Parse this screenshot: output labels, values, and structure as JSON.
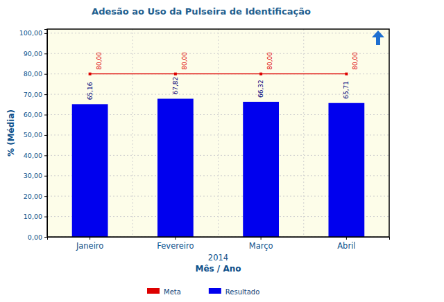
{
  "chart_data": {
    "type": "bar",
    "title": "Adesão ao Uso da Pulseira de Identificação",
    "x_label": "Mês / Ano",
    "y_label": "% (Média)",
    "annotations": [
      "2014"
    ],
    "categories": [
      "Janeiro",
      "Fevereiro",
      "Março",
      "Abril"
    ],
    "series": [
      {
        "name": "Resultado",
        "type": "bar",
        "color": "#0000ee",
        "values": [
          65.16,
          67.82,
          66.32,
          65.71
        ],
        "value_labels": [
          "65,16",
          "67,82",
          "66,32",
          "65,71"
        ]
      },
      {
        "name": "Meta",
        "type": "line",
        "color": "#dd0000",
        "marker": "square",
        "values": [
          80,
          80,
          80,
          80
        ],
        "value_labels": [
          "80,00",
          "80,00",
          "80,00",
          "80,00"
        ]
      }
    ],
    "ylim": [
      0,
      102
    ],
    "yticks": [
      {
        "value": 0,
        "label": "0,00"
      },
      {
        "value": 10,
        "label": "10,00"
      },
      {
        "value": 20,
        "label": "20,00"
      },
      {
        "value": 30,
        "label": "30,00"
      },
      {
        "value": 40,
        "label": "40,00"
      },
      {
        "value": 50,
        "label": "50,00"
      },
      {
        "value": 60,
        "label": "60,00"
      },
      {
        "value": 70,
        "label": "70,00"
      },
      {
        "value": 80,
        "label": "80,00"
      },
      {
        "value": 90,
        "label": "90,00"
      },
      {
        "value": 100,
        "label": "100,00"
      }
    ],
    "grid": true,
    "data_labels": true,
    "legend": "bottom"
  }
}
